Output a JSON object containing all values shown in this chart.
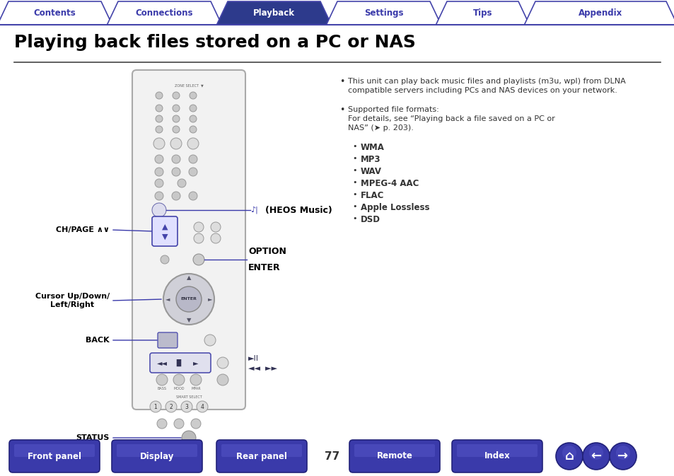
{
  "bg_color": "#ffffff",
  "title": "Playing back files stored on a PC or NAS",
  "title_color": "#000000",
  "title_fontsize": 18,
  "nav_tabs": [
    "Contents",
    "Connections",
    "Playback",
    "Settings",
    "Tips",
    "Appendix"
  ],
  "nav_active": "Playback",
  "nav_active_bg": "#2d3a8c",
  "nav_text_active": "#ffffff",
  "nav_text_inactive": "#3a3aaa",
  "nav_border": "#4444aa",
  "bottom_buttons": [
    "Front panel",
    "Display",
    "Rear panel",
    "Remote",
    "Index"
  ],
  "bottom_btn_color": "#3a3aaa",
  "bottom_btn_text": "#ffffff",
  "page_number": "77",
  "bullet1_line1": "This unit can play back music files and playlists (m3u, wpl) from DLNA",
  "bullet1_line2": "compatible servers including PCs and NAS devices on your network.",
  "bullet2_head": "Supported file formats:",
  "bullet2_sub1": "For details, see “Playing back a file saved on a PC or",
  "bullet2_sub2": "NAS” (➤ p. 203).",
  "formats": [
    "WMA",
    "MP3",
    "WAV",
    "MPEG-4 AAC",
    "FLAC",
    "Apple Lossless",
    "DSD"
  ],
  "label_color": "#000000",
  "line_color": "#3a3aaa",
  "separator_color": "#444444"
}
